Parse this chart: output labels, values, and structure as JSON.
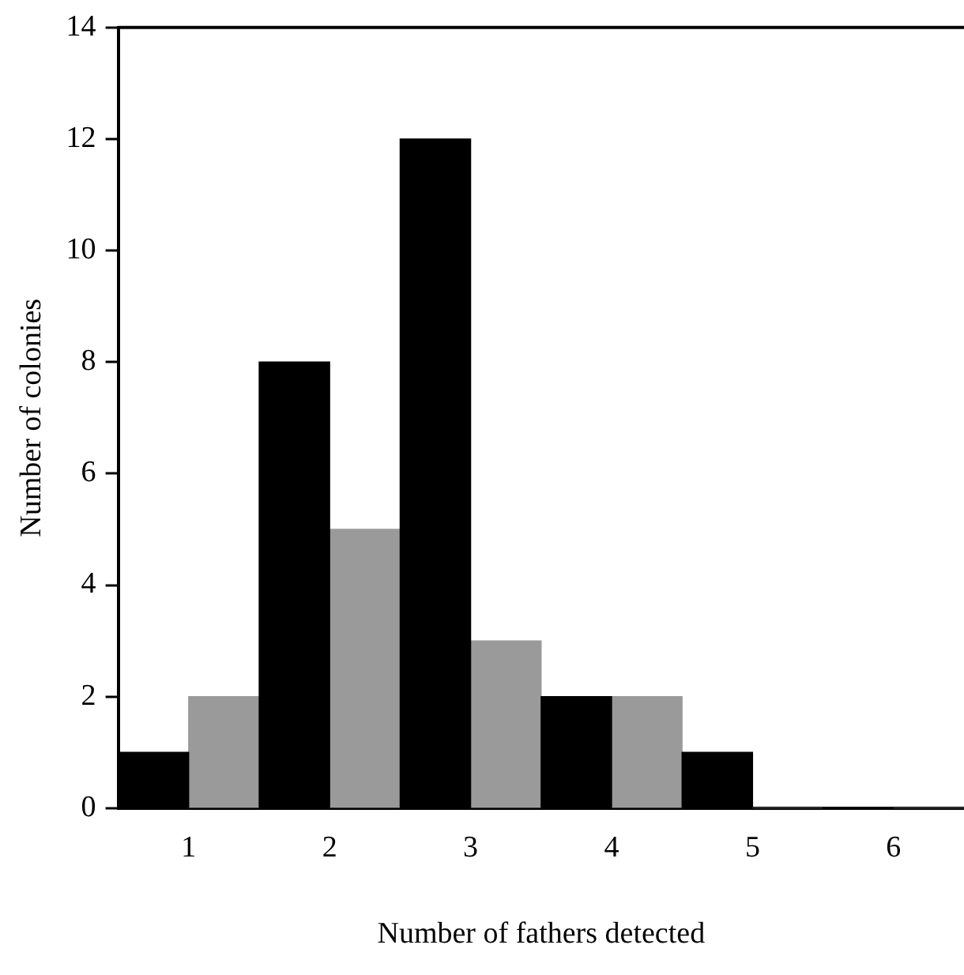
{
  "chart_data": {
    "type": "bar",
    "xlabel": "Number of fathers detected",
    "ylabel": "Number of colonies",
    "categories": [
      "1",
      "2",
      "3",
      "4",
      "5",
      "6"
    ],
    "series": [
      {
        "color": "#000000",
        "values": [
          1,
          8,
          12,
          2,
          1,
          0
        ]
      },
      {
        "color": "#9a9a9a",
        "values": [
          2,
          5,
          3,
          2,
          0,
          0
        ]
      }
    ],
    "ylim": [
      0,
      14
    ],
    "yticks": [
      0,
      2,
      4,
      6,
      8,
      10,
      12,
      14
    ],
    "grid": false,
    "legend": false
  }
}
